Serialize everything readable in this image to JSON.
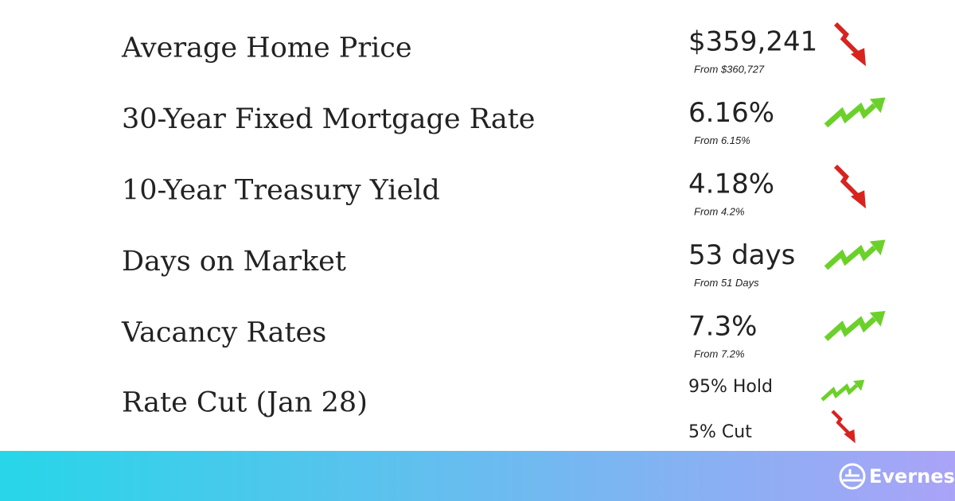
{
  "rows": [
    {
      "label": "Average Home Price",
      "value": "$359,241",
      "from": "From $360,727",
      "trend": "down"
    },
    {
      "label": "30-Year Fixed Mortgage Rate",
      "value": "6.16%",
      "from": "From 6.15%",
      "trend": "up"
    },
    {
      "label": "10-Year Treasury Yield",
      "value": "4.18%",
      "from": "From 4.2%",
      "trend": "down"
    },
    {
      "label": "Days on Market",
      "value": "53 days",
      "from": "From 51 Days",
      "trend": "up"
    },
    {
      "label": "Vacancy Rates",
      "value": "7.3%",
      "from": "From 7.2%",
      "trend": "up"
    }
  ],
  "rate_cut": {
    "label": "Rate Cut (Jan 28)",
    "items": [
      {
        "text": "95% Hold",
        "trend": "up"
      },
      {
        "text": "5% Cut",
        "trend": "down"
      }
    ]
  },
  "brand": "Evernest"
}
